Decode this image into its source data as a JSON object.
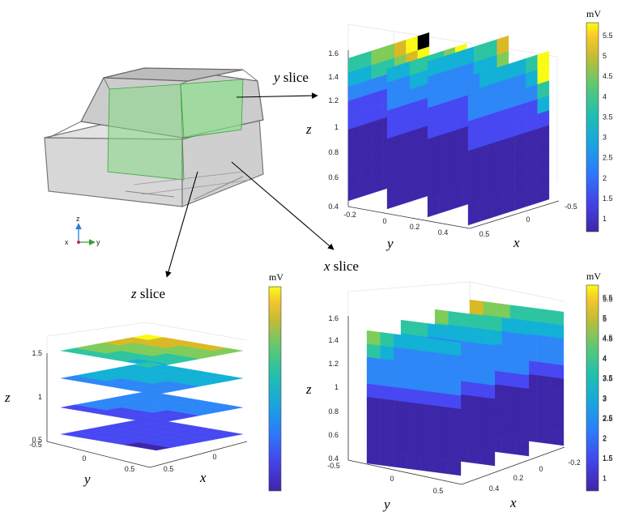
{
  "colorbar": {
    "unit": "mV",
    "ticks": [
      "5.5",
      "5",
      "4.5",
      "4",
      "3.5",
      "3",
      "2.5",
      "2",
      "1.5",
      "1"
    ]
  },
  "triad": {
    "z": "z",
    "x": "x",
    "y": "y"
  },
  "labels": {
    "y_slice": {
      "var": "y",
      "word": " slice"
    },
    "x_slice": {
      "var": "x",
      "word": " slice"
    },
    "z_slice": {
      "var": "z",
      "word": " slice"
    }
  },
  "axis_names": {
    "x": "x",
    "y": "y",
    "z": "z"
  },
  "plots": {
    "yslice": {
      "z_ticks": [
        "1.6",
        "1.4",
        "1.2",
        "1",
        "0.8",
        "0.6",
        "0.4"
      ],
      "y_ticks": [
        "-0.2",
        "0",
        "0.2",
        "0.4"
      ],
      "x_ticks": [
        "0.5",
        "0",
        "-0.5"
      ]
    },
    "zslice": {
      "z_ticks": [
        "1.5",
        "1",
        "0.5"
      ],
      "y_ticks": [
        "-0.5",
        "0",
        "0.5"
      ],
      "x_ticks": [
        "0.5",
        "0"
      ]
    },
    "xslice": {
      "z_ticks": [
        "1.6",
        "1.4",
        "1.2",
        "1",
        "0.8",
        "0.6",
        "0.4"
      ],
      "y_ticks": [
        "-0.5",
        "0",
        "0.5"
      ],
      "x_ticks": [
        "0.4",
        "0.2",
        "0",
        "-0.2"
      ]
    }
  },
  "colors": {
    "c1": "#3e26a8",
    "c2": "#4748f2",
    "c3": "#2e87f7",
    "c4": "#12b1d5",
    "c5": "#2dc5a1",
    "c6": "#7fcc5b",
    "c7": "#dbb924",
    "c8": "#f9fb15"
  }
}
